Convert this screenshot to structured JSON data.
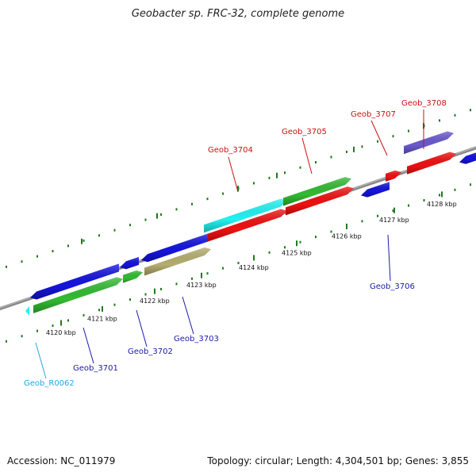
{
  "title": "Geobacter sp. FRC-32, complete genome",
  "footer": {
    "accession": "Accession: NC_011979",
    "summary": "Topology: circular; Length: 4,304,501 bp; Genes: 3,855"
  },
  "colors": {
    "backbone": "#8a8a8a",
    "tick": "#1e7a1e",
    "label_blue": "#1a1aaa",
    "label_red": "#cc1111",
    "label_cyan": "#22a8e0",
    "gene_blue": "#1515dd",
    "gene_red": "#ee1111",
    "gene_green": "#33bb33",
    "gene_cyan": "#22f2f2",
    "gene_olive": "#b5ae70",
    "gene_purple": "#6a5acd"
  },
  "ticks": [
    {
      "label": "4120 kbp"
    },
    {
      "label": "4121 kbp"
    },
    {
      "label": "4122 kbp"
    },
    {
      "label": "4123 kbp"
    },
    {
      "label": "4124 kbp"
    },
    {
      "label": "4125 kbp"
    },
    {
      "label": "4126 kbp"
    },
    {
      "label": "4127 kbp"
    },
    {
      "label": "4128 kbp"
    }
  ],
  "genes": [
    {
      "name": "Geob_R0062",
      "color": "gene_cyan",
      "label_color": "label_cyan"
    },
    {
      "name": "Geob_3701",
      "color": "gene_blue",
      "label_color": "label_blue"
    },
    {
      "name": "Geob_3702",
      "color": "gene_blue",
      "label_color": "label_blue"
    },
    {
      "name": "Geob_3703",
      "color": "gene_blue",
      "label_color": "label_blue"
    },
    {
      "name": "Geob_3704",
      "color": "gene_red",
      "label_color": "label_red"
    },
    {
      "name": "Geob_3705",
      "color": "gene_red",
      "label_color": "label_red"
    },
    {
      "name": "Geob_3706",
      "color": "gene_blue",
      "label_color": "label_blue"
    },
    {
      "name": "Geob_3707",
      "color": "gene_red",
      "label_color": "label_red"
    },
    {
      "name": "Geob_3708",
      "color": "gene_red",
      "label_color": "label_red"
    }
  ]
}
